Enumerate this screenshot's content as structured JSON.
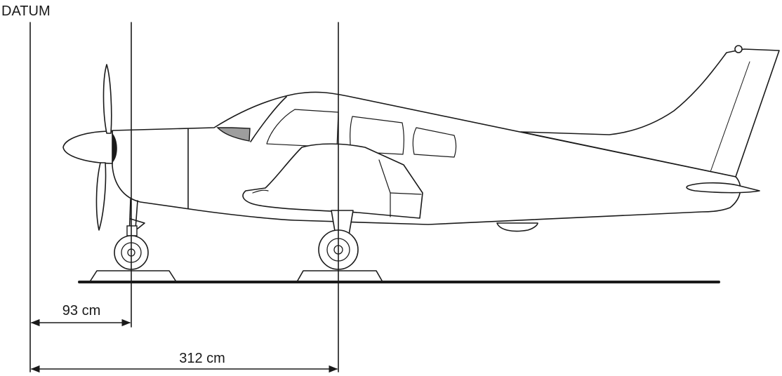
{
  "datum_label": "DATUM",
  "dimensions": [
    {
      "label": "93 cm",
      "value": 93,
      "unit": "cm",
      "from": "datum",
      "to": "nose-wheel-axle"
    },
    {
      "label": "312 cm",
      "value": 312,
      "unit": "cm",
      "from": "datum",
      "to": "main-wheel-axle"
    }
  ],
  "colors": {
    "line": "#1a1a1a",
    "windshield": "#9e9e9e",
    "background": "#ffffff"
  }
}
